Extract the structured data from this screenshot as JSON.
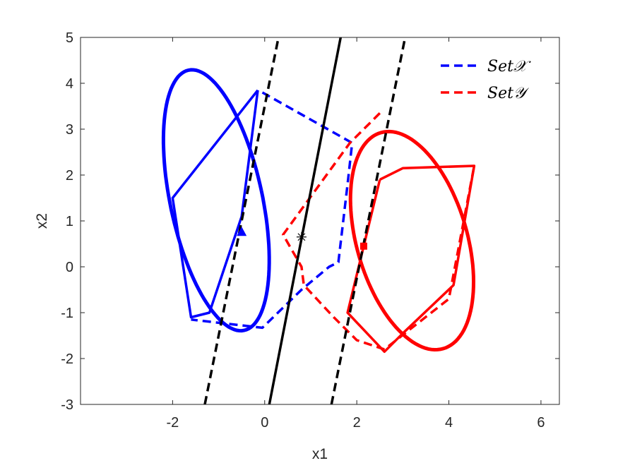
{
  "chart_data": {
    "type": "line",
    "title": "",
    "xlabel": "x1",
    "ylabel": "x2",
    "xlim": [
      -4,
      6.4
    ],
    "ylim": [
      -3,
      5
    ],
    "xticks": [
      -2,
      0,
      2,
      4,
      6
    ],
    "yticks": [
      -3,
      -2,
      -1,
      0,
      1,
      2,
      3,
      4,
      5
    ],
    "grid": false,
    "legend_position": "top-right",
    "legend": [
      {
        "label": "Set𝒳",
        "color": "#0000ff",
        "style": "dashed"
      },
      {
        "label": "Set𝒴",
        "color": "#ff0000",
        "style": "dashed"
      }
    ],
    "series": [
      {
        "color": "#0000ff",
        "style": "dashed",
        "x": [
          -0.05,
          1.9,
          1.8,
          1.6,
          1.4,
          0.8,
          -0.05,
          -1.6
        ],
        "y": [
          3.8,
          2.7,
          1.8,
          0.1,
          0.0,
          -0.5,
          -1.33,
          -1.15
        ]
      },
      {
        "color": "#ff0000",
        "style": "dashed",
        "x": [
          2.5,
          1.85,
          0.4,
          0.8,
          0.85,
          1.5,
          2.0,
          2.6,
          4.0,
          4.55
        ],
        "y": [
          3.35,
          2.7,
          0.7,
          0.0,
          -0.4,
          -1.1,
          -1.6,
          -1.8,
          -0.7,
          2.2
        ]
      },
      {
        "color": "#0000ff",
        "style": "solid",
        "x": [
          -0.15,
          -2.0,
          -1.6,
          -1.2,
          -0.5,
          -0.15
        ],
        "y": [
          3.85,
          1.5,
          -1.1,
          -1.0,
          1.1,
          3.85
        ]
      },
      {
        "color": "#ff0000",
        "style": "solid",
        "x": [
          2.5,
          3.0,
          4.55,
          4.1,
          3.0,
          2.6,
          1.8,
          2.5
        ],
        "y": [
          1.9,
          2.15,
          2.2,
          -0.4,
          -1.45,
          -1.85,
          -1.0,
          1.9
        ]
      },
      {
        "color": "#000000",
        "style": "solid",
        "x": [
          0.1,
          1.65
        ],
        "y": [
          -3.0,
          5.0
        ]
      },
      {
        "color": "#000000",
        "style": "dashed",
        "x": [
          -1.3,
          0.3
        ],
        "y": [
          -3.0,
          5.0
        ]
      },
      {
        "color": "#000000",
        "style": "dashed",
        "x": [
          1.45,
          3.05
        ],
        "y": [
          -3.0,
          5.0
        ]
      }
    ],
    "ellipses": [
      {
        "color": "#0000ff",
        "cx": -1.05,
        "cy": 1.45,
        "rx": 1.0,
        "ry": 2.9,
        "angle_deg": 12
      },
      {
        "color": "#ff0000",
        "cx": 3.2,
        "cy": 0.57,
        "rx": 1.2,
        "ry": 2.45,
        "angle_deg": 16
      }
    ],
    "markers": [
      {
        "shape": "triangle",
        "color": "#0000ff",
        "x": -0.5,
        "y": 0.75
      },
      {
        "shape": "square",
        "color": "#ff0000",
        "x": 2.15,
        "y": 0.45
      },
      {
        "shape": "asterisk",
        "color": "#000000",
        "x": 0.8,
        "y": 0.65
      }
    ]
  }
}
